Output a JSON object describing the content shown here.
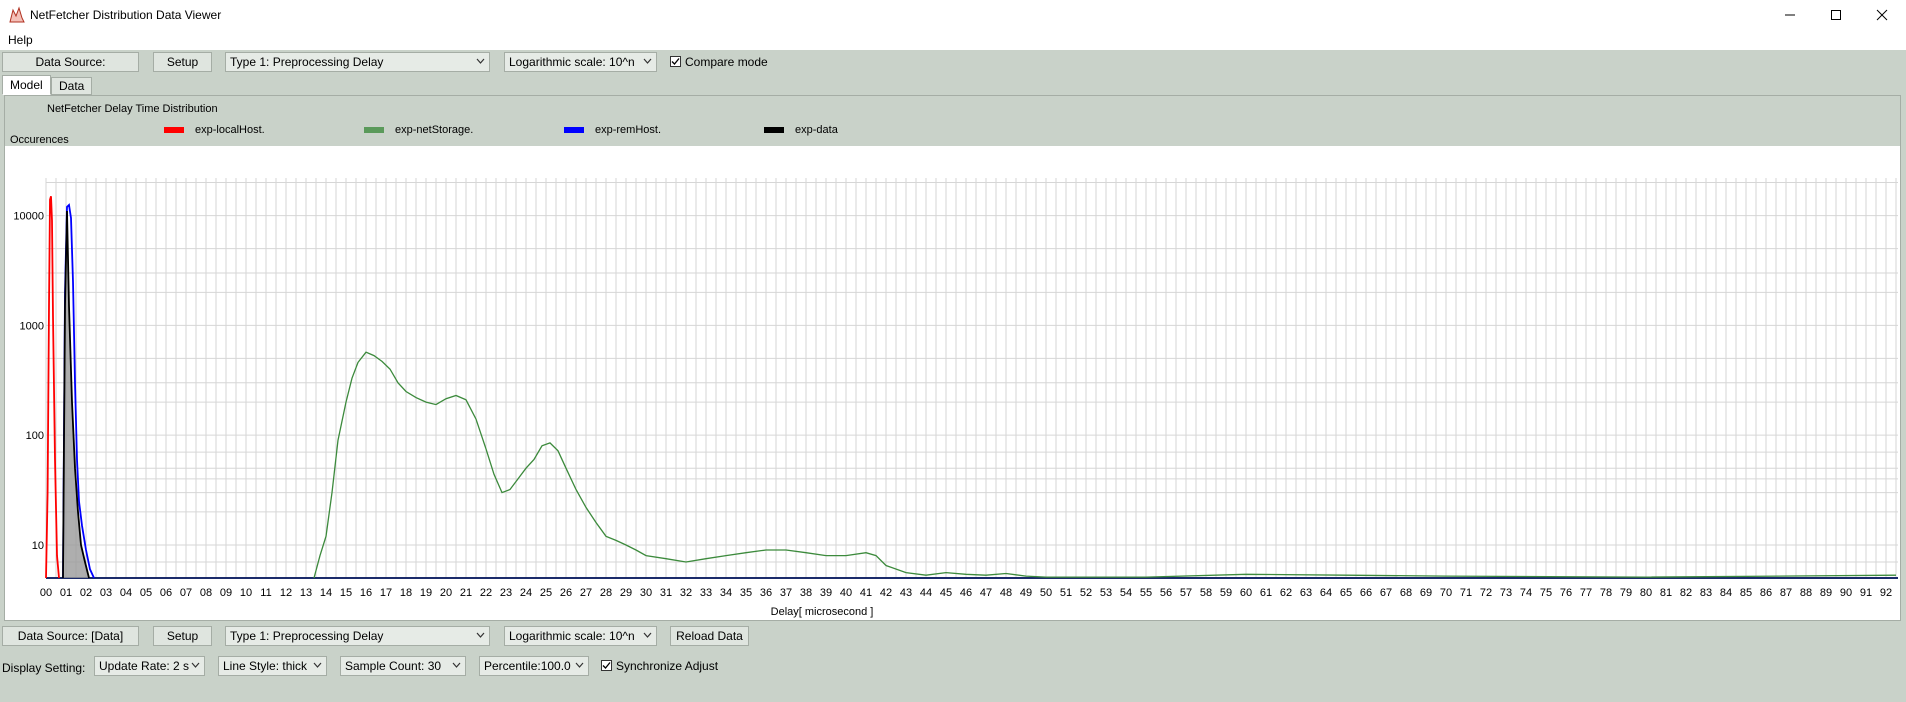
{
  "window": {
    "title": "NetFetcher Distribution Data Viewer",
    "menu": [
      "Help"
    ]
  },
  "top_toolbar": {
    "data_source_label": "Data Source:",
    "setup_label": "Setup",
    "type_value": "Type 1: Preprocessing Delay",
    "scale_value": "Logarithmic scale: 10^n",
    "compare_label": "Compare mode",
    "compare_checked": true
  },
  "tabs": [
    {
      "label": "Model",
      "active": true
    },
    {
      "label": "Data",
      "active": false
    }
  ],
  "bottom_toolbar": {
    "data_source_label": "Data Source: [Data]",
    "setup_label": "Setup",
    "type_value": "Type 1: Preprocessing Delay",
    "scale_value": "Logarithmic scale: 10^n",
    "reload_label": "Reload Data"
  },
  "display_settings": {
    "label": "Display Setting:",
    "update_rate": "Update Rate: 2 s",
    "line_style": "Line Style: thick",
    "sample_count": "Sample Count: 30",
    "percentile": "Percentile:100.0",
    "sync_label": "Synchronize Adjust",
    "sync_checked": true
  },
  "colors": {
    "exp-localHost.": "#ff0000",
    "exp-netStorage.": "#3c8a3c",
    "exp-remHost.": "#0000ff",
    "exp-data": "#000000",
    "grid": "#d6d6d6"
  },
  "chart_data": {
    "type": "line",
    "title": "NetFetcher Delay Time Distribution",
    "xlabel": "Delay[ microsecond ]",
    "ylabel": "Occurences",
    "y_scale": "log",
    "ylim": [
      5,
      22000
    ],
    "xlim": [
      0,
      92.6
    ],
    "y_ticks": [
      10,
      100,
      1000,
      10000
    ],
    "x_ticks": [
      "00",
      "01",
      "02",
      "03",
      "04",
      "05",
      "06",
      "07",
      "08",
      "09",
      "10",
      "11",
      "12",
      "13",
      "14",
      "15",
      "16",
      "17",
      "18",
      "19",
      "20",
      "21",
      "22",
      "23",
      "24",
      "25",
      "26",
      "27",
      "28",
      "29",
      "30",
      "31",
      "32",
      "33",
      "34",
      "35",
      "36",
      "37",
      "38",
      "39",
      "40",
      "41",
      "42",
      "43",
      "44",
      "45",
      "46",
      "47",
      "48",
      "49",
      "50",
      "51",
      "52",
      "53",
      "54",
      "55",
      "56",
      "57",
      "58",
      "59",
      "60",
      "61",
      "62",
      "63",
      "64",
      "65",
      "66",
      "67",
      "68",
      "69",
      "70",
      "71",
      "72",
      "73",
      "74",
      "75",
      "76",
      "77",
      "78",
      "79",
      "80",
      "81",
      "82",
      "83",
      "84",
      "85",
      "86",
      "87",
      "88",
      "89",
      "90",
      "91",
      "92"
    ],
    "legend_position": "top",
    "grid": true,
    "series": [
      {
        "name": "exp-localHost.",
        "x": [
          0.0,
          0.08,
          0.15,
          0.2,
          0.25,
          0.3,
          0.35,
          0.45,
          0.55,
          0.65
        ],
        "y": [
          5,
          30,
          1500,
          14000,
          15000,
          9000,
          1200,
          60,
          8,
          5
        ]
      },
      {
        "name": "exp-netStorage.",
        "x": [
          13.4,
          13.7,
          14.0,
          14.3,
          14.6,
          15.0,
          15.3,
          15.6,
          16.0,
          16.4,
          16.8,
          17.2,
          17.6,
          18.0,
          18.5,
          19.0,
          19.5,
          20.0,
          20.5,
          21.0,
          21.5,
          22.0,
          22.4,
          22.8,
          23.2,
          23.6,
          24.0,
          24.4,
          24.8,
          25.2,
          25.6,
          26.0,
          26.5,
          27.0,
          27.5,
          28.0,
          28.5,
          29.0,
          29.5,
          30.0,
          31.0,
          32.0,
          33.0,
          34.0,
          35.0,
          36.0,
          37.0,
          38.0,
          39.0,
          40.0,
          41.0,
          41.5,
          42.0,
          43.0,
          44.0,
          45.0,
          46.0,
          47.0,
          48.0,
          49.0,
          50.0,
          55.0,
          60.0,
          65.0,
          70.0,
          80.0,
          92.5
        ],
        "y": [
          5,
          8,
          12,
          30,
          90,
          200,
          330,
          460,
          570,
          530,
          470,
          400,
          300,
          250,
          220,
          200,
          190,
          215,
          230,
          210,
          140,
          75,
          44,
          30,
          32,
          40,
          50,
          60,
          80,
          85,
          72,
          50,
          32,
          22,
          16,
          12,
          11,
          10,
          9,
          8,
          7.5,
          7,
          7.5,
          8,
          8.5,
          9,
          9,
          8.5,
          8,
          8,
          8.5,
          8,
          6.5,
          5.6,
          5.3,
          5.6,
          5.4,
          5.3,
          5.5,
          5.2,
          5.1,
          5.1,
          5.4,
          5.3,
          5.2,
          5.1,
          5.3
        ]
      },
      {
        "name": "exp-remHost.",
        "x": [
          0.85,
          0.95,
          1.05,
          1.15,
          1.25,
          1.35,
          1.45,
          1.55,
          1.65,
          1.8,
          2.0,
          2.2,
          2.4
        ],
        "y": [
          5,
          2000,
          12000,
          12500,
          9500,
          2500,
          300,
          60,
          25,
          15,
          9,
          6,
          5
        ]
      },
      {
        "name": "exp-data",
        "x": [
          0.85,
          0.95,
          1.05,
          1.15,
          1.3,
          1.45,
          1.6,
          1.75,
          1.95,
          2.15
        ],
        "y": [
          5,
          1500,
          11000,
          1500,
          200,
          50,
          20,
          10,
          7,
          5
        ]
      }
    ]
  }
}
